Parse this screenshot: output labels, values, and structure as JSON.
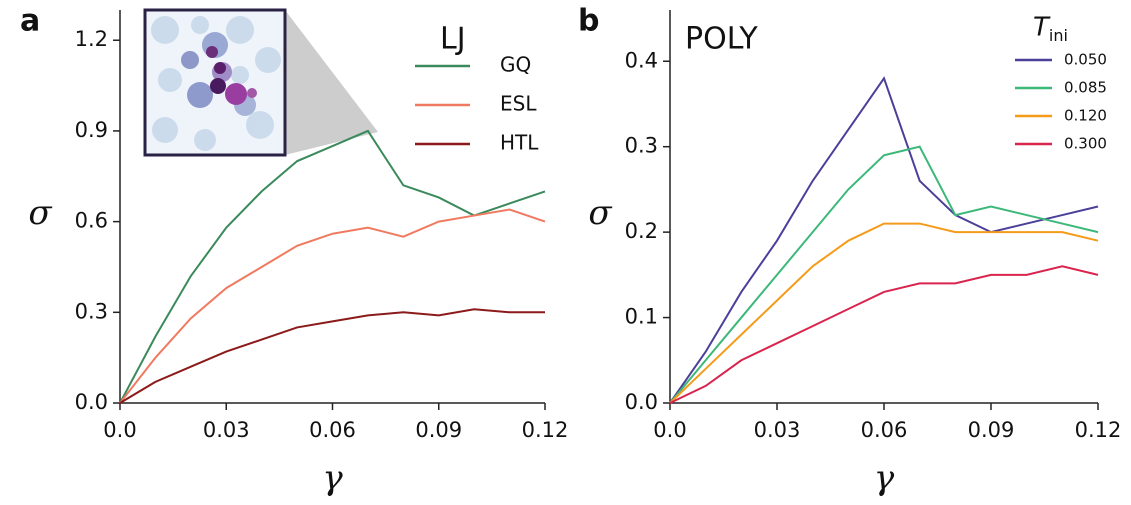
{
  "chart_data": [
    {
      "type": "line",
      "panel_label": "a",
      "title": "LJ",
      "xlabel": "γ",
      "ylabel": "σ",
      "x": [
        0,
        0.01,
        0.02,
        0.03,
        0.04,
        0.05,
        0.06,
        0.07,
        0.08,
        0.09,
        0.1,
        0.11,
        0.12
      ],
      "xlim": [
        0,
        0.12
      ],
      "ylim": [
        0,
        1.3
      ],
      "xticks": [
        {
          "value": 0,
          "label": "0.0"
        },
        0.03,
        0.06,
        0.09,
        0.12
      ],
      "yticks": [
        {
          "value": 0,
          "label": "0.0"
        },
        0.3,
        0.6,
        0.9,
        1.2
      ],
      "series": [
        {
          "name": "GQ",
          "color": "#3a8a5c",
          "values": [
            0,
            0.22,
            0.42,
            0.58,
            0.7,
            0.8,
            0.85,
            0.9,
            0.72,
            0.68,
            0.62,
            0.66,
            0.7
          ]
        },
        {
          "name": "ESL",
          "color": "#f07a60",
          "values": [
            0,
            0.15,
            0.28,
            0.38,
            0.45,
            0.52,
            0.56,
            0.58,
            0.55,
            0.6,
            0.62,
            0.64,
            0.6
          ]
        },
        {
          "name": "HTL",
          "color": "#8b1a1a",
          "values": [
            0,
            0.07,
            0.12,
            0.17,
            0.21,
            0.25,
            0.27,
            0.29,
            0.3,
            0.29,
            0.31,
            0.3,
            0.3
          ]
        }
      ]
    },
    {
      "type": "line",
      "panel_label": "b",
      "title": "POLY",
      "xlabel": "γ",
      "ylabel": "σ",
      "legend_title": "T",
      "legend_title_sub": "ini",
      "x": [
        0,
        0.01,
        0.02,
        0.03,
        0.04,
        0.05,
        0.06,
        0.07,
        0.08,
        0.09,
        0.1,
        0.11,
        0.12
      ],
      "xlim": [
        0,
        0.12
      ],
      "ylim": [
        0,
        0.46
      ],
      "xticks": [
        {
          "value": 0,
          "label": "0.0"
        },
        0.03,
        0.06,
        0.09,
        0.12
      ],
      "yticks": [
        {
          "value": 0,
          "label": "0.0"
        },
        0.1,
        0.2,
        0.3,
        0.4
      ],
      "series": [
        {
          "name": "0.050",
          "color": "#4b4099",
          "values": [
            0,
            0.06,
            0.13,
            0.19,
            0.26,
            0.32,
            0.38,
            0.26,
            0.22,
            0.2,
            0.21,
            0.22,
            0.23
          ]
        },
        {
          "name": "0.085",
          "color": "#3cb878",
          "values": [
            0,
            0.05,
            0.1,
            0.15,
            0.2,
            0.25,
            0.29,
            0.3,
            0.22,
            0.23,
            0.22,
            0.21,
            0.2
          ]
        },
        {
          "name": "0.120",
          "color": "#f59b1a",
          "values": [
            0,
            0.04,
            0.08,
            0.12,
            0.16,
            0.19,
            0.21,
            0.21,
            0.2,
            0.2,
            0.2,
            0.2,
            0.19
          ]
        },
        {
          "name": "0.300",
          "color": "#d9254e",
          "values": [
            0,
            0.02,
            0.05,
            0.07,
            0.09,
            0.11,
            0.13,
            0.14,
            0.14,
            0.15,
            0.15,
            0.16,
            0.15
          ]
        }
      ]
    }
  ]
}
